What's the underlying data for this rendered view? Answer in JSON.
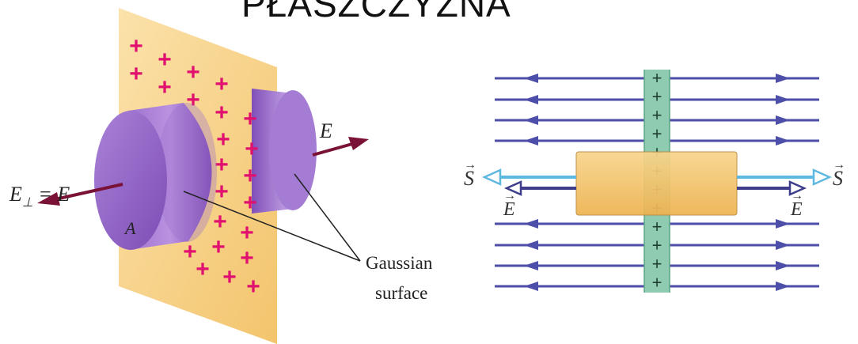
{
  "title": "PŁASZCZYZNA",
  "left_figure": {
    "e_label": "E",
    "e_perp_label": "E",
    "e_perp_subscript": "⊥",
    "e_perp_rhs": " = E",
    "area_label": "A",
    "gaussian_label_line1": "Gaussian",
    "gaussian_label_line2": "surface",
    "plus_symbol": "+"
  },
  "right_figure": {
    "s_left": "S",
    "s_right": "S",
    "e_left": "E",
    "e_right": "E",
    "vector_mark": "→",
    "plus_symbol": "+"
  },
  "colors": {
    "sheet": "#f7cf85",
    "cylinder": "#8f5cc0",
    "plus": "#e0106f",
    "arrow_e": "#7a1237",
    "field_lines": "#4d4eaa",
    "box": "#f3c064",
    "strip": "#7fc4a3",
    "s_arrow": "#5fb8e0"
  }
}
